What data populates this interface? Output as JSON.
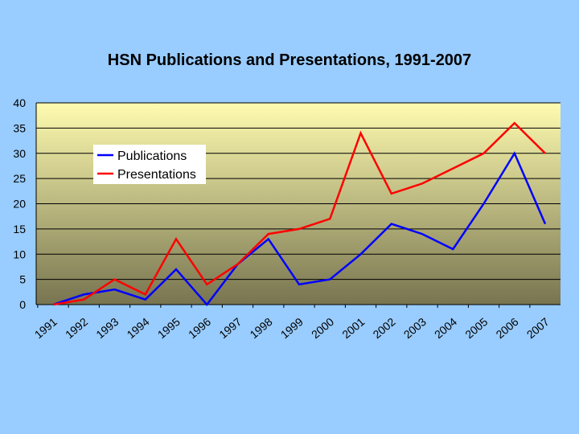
{
  "colors": {
    "background": "#99ccff",
    "plot_top": "#fffcb0",
    "plot_bottom": "#777450",
    "publications": "#0000ff",
    "presentations": "#ff0000",
    "grid": "#000000"
  },
  "chart_data": {
    "type": "line",
    "title": "HSN Publications and Presentations, 1991-2007",
    "xlabel": "",
    "ylabel": "",
    "categories": [
      "1991",
      "1992",
      "1993",
      "1994",
      "1995",
      "1996",
      "1997",
      "1998",
      "1999",
      "2000",
      "2001",
      "2002",
      "2003",
      "2004",
      "2005",
      "2006",
      "2007"
    ],
    "series": [
      {
        "name": "Publications",
        "color": "#0000ff",
        "values": [
          0,
          2,
          3,
          1,
          7,
          0,
          8,
          13,
          4,
          5,
          10,
          16,
          14,
          11,
          20,
          30,
          16
        ]
      },
      {
        "name": "Presentations",
        "color": "#ff0000",
        "values": [
          0,
          1,
          5,
          2,
          13,
          4,
          8,
          14,
          15,
          17,
          34,
          22,
          24,
          27,
          30,
          36,
          30
        ]
      }
    ],
    "ylim": [
      0,
      40
    ],
    "yticks": [
      0,
      5,
      10,
      15,
      20,
      25,
      30,
      35,
      40
    ],
    "grid": true,
    "legend_position": "upper-left"
  }
}
